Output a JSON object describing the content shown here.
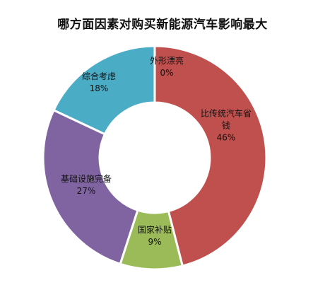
{
  "chart_data": {
    "type": "pie",
    "title": "哪方面因素对购买新能源汽车影响最大",
    "categories": [
      "外形漂亮",
      "比传统汽车省钱",
      "国家补贴",
      "基础设施完备",
      "综合考虑"
    ],
    "label_lines": [
      [
        "外形漂亮"
      ],
      [
        "比传统汽车省",
        "钱"
      ],
      [
        "国家补贴"
      ],
      [
        "基础设施完备"
      ],
      [
        "综合考虑"
      ]
    ],
    "values": [
      0,
      46,
      9,
      27,
      18
    ],
    "value_labels": [
      "0%",
      "46%",
      "9%",
      "27%",
      "18%"
    ],
    "colors": [
      "#4F81BD",
      "#C0504D",
      "#9BBB59",
      "#8064A2",
      "#4BACC6"
    ],
    "donut": true,
    "legend": "none",
    "data_labels": "category-and-percent"
  }
}
